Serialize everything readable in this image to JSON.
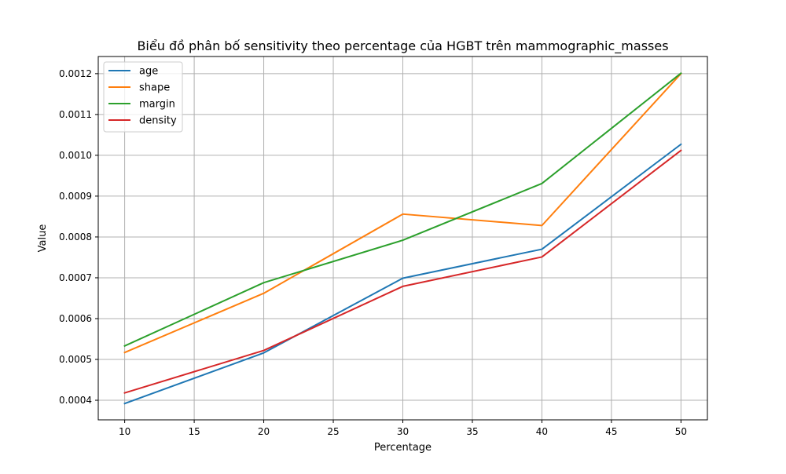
{
  "chart_data": {
    "type": "line",
    "title": "Biểu đồ phân bố sensitivity theo percentage của HGBT trên mammographic_masses",
    "xlabel": "Percentage",
    "ylabel": "Value",
    "x": [
      10,
      20,
      30,
      40,
      50
    ],
    "xticks": [
      "10",
      "15",
      "20",
      "25",
      "30",
      "35",
      "40",
      "45",
      "50"
    ],
    "xtick_values": [
      10,
      15,
      20,
      25,
      30,
      35,
      40,
      45,
      50
    ],
    "yticks": [
      "0.0004",
      "0.0005",
      "0.0006",
      "0.0007",
      "0.0008",
      "0.0009",
      "0.0010",
      "0.0011",
      "0.0012"
    ],
    "ytick_values": [
      0.0004,
      0.0005,
      0.0006,
      0.0007,
      0.0008,
      0.0009,
      0.001,
      0.0011,
      0.0012
    ],
    "xlim": [
      8.1,
      51.9
    ],
    "ylim": [
      0.000352,
      0.001242
    ],
    "grid": true,
    "legend_position": "top-left",
    "series": [
      {
        "name": "age",
        "color": "#1f77b4",
        "values": [
          0.000392,
          0.000516,
          0.000699,
          0.00077,
          0.001027
        ]
      },
      {
        "name": "shape",
        "color": "#ff7f0e",
        "values": [
          0.000517,
          0.000662,
          0.000856,
          0.000828,
          0.0012
        ]
      },
      {
        "name": "margin",
        "color": "#2ca02c",
        "values": [
          0.000533,
          0.000688,
          0.000792,
          0.000931,
          0.001201
        ]
      },
      {
        "name": "density",
        "color": "#d62728",
        "values": [
          0.000418,
          0.000522,
          0.000679,
          0.000751,
          0.001012
        ]
      }
    ]
  }
}
